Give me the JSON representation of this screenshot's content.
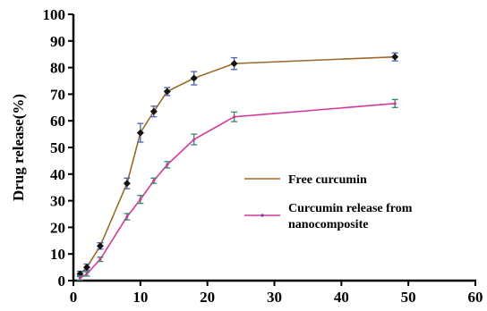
{
  "chart_data": {
    "type": "line",
    "title": "",
    "xlabel": "",
    "ylabel": "Drug release(%)",
    "xlim": [
      0,
      60
    ],
    "ylim": [
      0,
      100
    ],
    "xticks": [
      0,
      10,
      20,
      30,
      40,
      50,
      60
    ],
    "yticks": [
      0,
      10,
      20,
      30,
      40,
      50,
      60,
      70,
      80,
      90,
      100
    ],
    "grid": false,
    "legend_position": "center-right",
    "series": [
      {
        "name": "Free curcumin",
        "color": "#9a6a2a",
        "error_color": "#4a5fb0",
        "marker": "diamond",
        "x": [
          1,
          2,
          4,
          8,
          10,
          12,
          14,
          18,
          24,
          48
        ],
        "y": [
          2.5,
          5,
          13,
          36.5,
          55.5,
          63.5,
          71,
          76,
          81.5,
          84
        ],
        "err": [
          1,
          1.2,
          1.2,
          2,
          3.5,
          2,
          1.5,
          2.5,
          2.2,
          1.5
        ]
      },
      {
        "name": "Curcumin release from nanocomposite",
        "color": "#d6379a",
        "error_color": "#2e8a6a",
        "marker": "dot",
        "x": [
          1,
          2,
          4,
          8,
          10,
          12,
          14,
          18,
          24,
          48
        ],
        "y": [
          1,
          2.5,
          8,
          24,
          30.5,
          37.5,
          43.5,
          53,
          61.5,
          66.5
        ],
        "err": [
          0.8,
          0.8,
          0.8,
          1.2,
          1.5,
          1,
          1.2,
          2,
          1.8,
          1.5
        ]
      }
    ]
  }
}
